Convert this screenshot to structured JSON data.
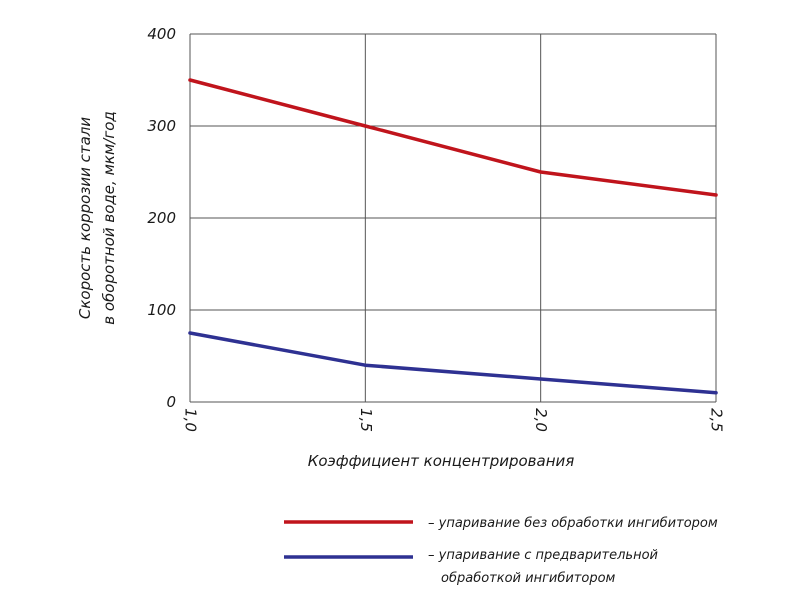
{
  "chart_data": {
    "type": "line",
    "xlabel": "Коэффициент концентрирования",
    "ylabel_lines": [
      "Скорость коррозии стали",
      "в оборотной воде, мкм/год"
    ],
    "xlim": [
      1.0,
      2.5
    ],
    "ylim": [
      0,
      400
    ],
    "x_ticks": [
      1.0,
      1.5,
      2.0,
      2.5
    ],
    "x_tick_labels": [
      "1,0",
      "1,5",
      "2,0",
      "2,5"
    ],
    "y_ticks": [
      0,
      100,
      200,
      300,
      400
    ],
    "y_tick_labels": [
      "0",
      "100",
      "200",
      "300",
      "400"
    ],
    "grid": true,
    "legend_position": "bottom",
    "series": [
      {
        "key": "no_inhibitor",
        "label_lines": [
          "– упаривание без обработки ингибитором"
        ],
        "color": "#c0141c",
        "x": [
          1.0,
          1.5,
          2.0,
          2.5
        ],
        "y": [
          350,
          300,
          250,
          225
        ]
      },
      {
        "key": "with_inhibitor",
        "label_lines": [
          "– упаривание с предварительной",
          "обработкой ингибитором"
        ],
        "color": "#2e3192",
        "x": [
          1.0,
          1.5,
          2.0,
          2.5
        ],
        "y": [
          75,
          40,
          25,
          10
        ]
      }
    ]
  }
}
